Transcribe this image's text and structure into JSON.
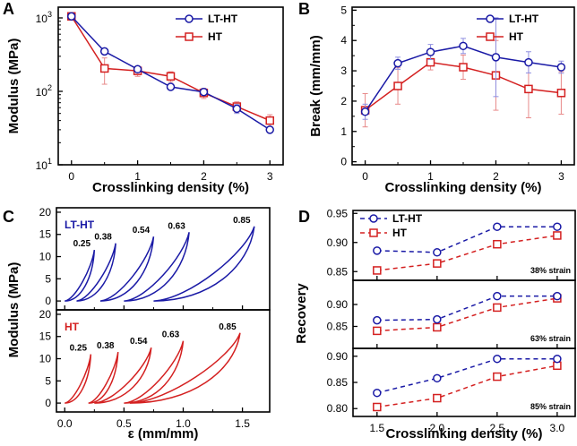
{
  "colors": {
    "blue": "#1a1aa6",
    "red": "#d42020",
    "axis": "#000000",
    "errorbar_blue": "#8f8fe0",
    "errorbar_red": "#e88a8a"
  },
  "chart_data": [
    {
      "panel": "A",
      "type": "line",
      "xlabel": "Crosslinking density (%)",
      "ylabel": "Modulus (MPa)",
      "yscale": "log",
      "xlim": [
        -0.2,
        3.2
      ],
      "ylim": [
        10,
        1400
      ],
      "xticks": [
        0,
        1,
        2,
        3
      ],
      "xtick_labels": [
        "0",
        "1",
        "2",
        "3"
      ],
      "yticks": [
        10,
        100,
        1000
      ],
      "ytick_labels": [
        "10¹",
        "10²",
        "10³"
      ],
      "legend_position": "top-right",
      "series": [
        {
          "name": "LT-HT",
          "color_key": "blue",
          "marker": "circle",
          "x": [
            0,
            0.5,
            1,
            1.5,
            2,
            2.5,
            3
          ],
          "y": [
            1050,
            350,
            200,
            115,
            98,
            58,
            30
          ],
          "err": [
            0,
            0,
            0,
            0,
            10,
            8,
            0
          ]
        },
        {
          "name": "HT",
          "color_key": "red",
          "marker": "square",
          "x": [
            0,
            0.5,
            1,
            1.5,
            2,
            2.5,
            3
          ],
          "y": [
            1050,
            205,
            190,
            160,
            95,
            62,
            40
          ],
          "err": [
            80,
            80,
            30,
            25,
            15,
            10,
            8
          ]
        }
      ]
    },
    {
      "panel": "B",
      "type": "line",
      "xlabel": "Crosslinking density (%)",
      "ylabel": "Break (mm/mm)",
      "yscale": "linear",
      "xlim": [
        -0.2,
        3.2
      ],
      "ylim": [
        -0.1,
        5.1
      ],
      "xticks": [
        0,
        1,
        2,
        3
      ],
      "xtick_labels": [
        "0",
        "1",
        "2",
        "3"
      ],
      "yticks": [
        0,
        1,
        2,
        3,
        4,
        5
      ],
      "ytick_labels": [
        "0",
        "1",
        "2",
        "3",
        "4",
        "5"
      ],
      "legend_position": "top-right",
      "series": [
        {
          "name": "LT-HT",
          "color_key": "blue",
          "marker": "circle",
          "x": [
            0,
            0.5,
            1,
            1.5,
            2,
            2.5,
            3
          ],
          "y": [
            1.65,
            3.25,
            3.62,
            3.82,
            3.45,
            3.28,
            3.12
          ],
          "err": [
            0.25,
            0.2,
            0.25,
            0.25,
            1.3,
            0.35,
            0.2
          ]
        },
        {
          "name": "HT",
          "color_key": "red",
          "marker": "square",
          "x": [
            0,
            0.5,
            1,
            1.5,
            2,
            2.5,
            3
          ],
          "y": [
            1.7,
            2.5,
            3.28,
            3.12,
            2.85,
            2.4,
            2.27
          ],
          "err": [
            0.55,
            0.6,
            0.25,
            0.4,
            1.15,
            0.95,
            0.7
          ]
        }
      ]
    },
    {
      "panel": "C",
      "type": "line",
      "xlabel": "ε (mm/mm)",
      "ylabel": "Modulus (MPa)",
      "xlim": [
        -0.07,
        1.73
      ],
      "xticks": [
        0,
        0.5,
        1,
        1.5
      ],
      "xtick_labels": [
        "0.0",
        "0.5",
        "1.0",
        "1.5"
      ],
      "ylim": [
        -2,
        21
      ],
      "yticks": [
        0,
        5,
        10,
        15,
        20
      ],
      "ytick_labels": [
        "0",
        "5",
        "10",
        "15",
        "20"
      ],
      "subplots": [
        {
          "name": "LT-HT",
          "color_key": "blue",
          "loops": [
            {
              "label": "0.25",
              "x_start": 0.0,
              "x_max": 0.25,
              "y_max": 11.5
            },
            {
              "label": "0.38",
              "x_start": 0.1,
              "x_max": 0.43,
              "y_max": 13.0
            },
            {
              "label": "0.54",
              "x_start": 0.3,
              "x_max": 0.75,
              "y_max": 14.5
            },
            {
              "label": "0.63",
              "x_start": 0.5,
              "x_max": 1.05,
              "y_max": 15.5
            },
            {
              "label": "0.85",
              "x_start": 0.75,
              "x_max": 1.6,
              "y_max": 16.8
            }
          ]
        },
        {
          "name": "HT",
          "color_key": "red",
          "loops": [
            {
              "label": "0.25",
              "x_start": 0.0,
              "x_max": 0.22,
              "y_max": 11.0
            },
            {
              "label": "0.38",
              "x_start": 0.2,
              "x_max": 0.45,
              "y_max": 11.5
            },
            {
              "label": "0.54",
              "x_start": 0.25,
              "x_max": 0.73,
              "y_max": 12.5
            },
            {
              "label": "0.63",
              "x_start": 0.5,
              "x_max": 1.0,
              "y_max": 14.0
            },
            {
              "label": "0.85",
              "x_start": 0.55,
              "x_max": 1.48,
              "y_max": 15.8
            }
          ]
        }
      ]
    },
    {
      "panel": "D",
      "type": "line",
      "xlabel": "Crosslinking density (%)",
      "ylabel": "Recovery",
      "xlim": [
        1.3,
        3.15
      ],
      "xticks": [
        1.5,
        2.0,
        2.5,
        3.0
      ],
      "xtick_labels": [
        "1.5",
        "2.0",
        "2.5",
        "3.0"
      ],
      "legend": [
        "LT-HT",
        "HT"
      ],
      "subplots": [
        {
          "strain_label": "38% strain",
          "ylim": [
            0.835,
            0.955
          ],
          "yticks": [
            0.85,
            0.9,
            0.95
          ],
          "ytick_labels": [
            "0.85",
            "0.90",
            "0.95"
          ],
          "series": [
            {
              "name": "LT-HT",
              "color_key": "blue",
              "marker": "circle",
              "x": [
                1.5,
                2.0,
                2.5,
                3.0
              ],
              "y": [
                0.886,
                0.883,
                0.927,
                0.927
              ]
            },
            {
              "name": "HT",
              "color_key": "red",
              "marker": "square",
              "x": [
                1.5,
                2.0,
                2.5,
                3.0
              ],
              "y": [
                0.852,
                0.864,
                0.897,
                0.912
              ]
            }
          ]
        },
        {
          "strain_label": "63% strain",
          "ylim": [
            0.8,
            0.955
          ],
          "yticks": [
            0.85,
            0.9
          ],
          "ytick_labels": [
            "0.85",
            "0.90"
          ],
          "series": [
            {
              "name": "LT-HT",
              "color_key": "blue",
              "marker": "circle",
              "x": [
                1.5,
                2.0,
                2.5,
                3.0
              ],
              "y": [
                0.864,
                0.866,
                0.919,
                0.919
              ]
            },
            {
              "name": "HT",
              "color_key": "red",
              "marker": "square",
              "x": [
                1.5,
                2.0,
                2.5,
                3.0
              ],
              "y": [
                0.84,
                0.848,
                0.893,
                0.914
              ]
            }
          ]
        },
        {
          "strain_label": "85% strain",
          "ylim": [
            0.785,
            0.915
          ],
          "yticks": [
            0.8,
            0.85,
            0.9
          ],
          "ytick_labels": [
            "0.80",
            "0.85",
            "0.90"
          ],
          "series": [
            {
              "name": "LT-HT",
              "color_key": "blue",
              "marker": "circle",
              "x": [
                1.5,
                2.0,
                2.5,
                3.0
              ],
              "y": [
                0.83,
                0.858,
                0.895,
                0.895
              ]
            },
            {
              "name": "HT",
              "color_key": "red",
              "marker": "square",
              "x": [
                1.5,
                2.0,
                2.5,
                3.0
              ],
              "y": [
                0.803,
                0.82,
                0.861,
                0.882
              ]
            }
          ]
        }
      ]
    }
  ]
}
